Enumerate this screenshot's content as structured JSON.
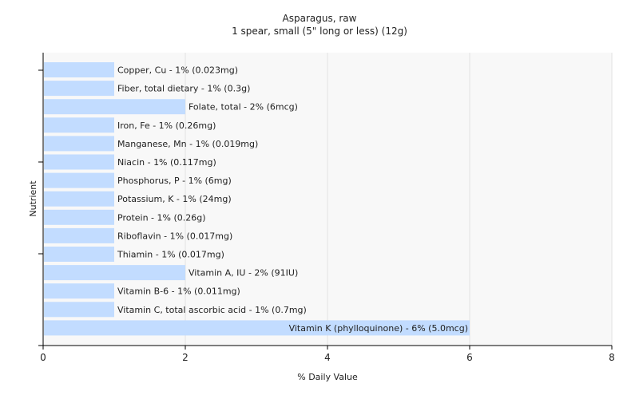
{
  "chart_data": {
    "type": "bar",
    "orientation": "horizontal",
    "title": "Asparagus, raw",
    "subtitle": "1 spear, small (5\" long or less) (12g)",
    "xlabel": "% Daily Value",
    "ylabel": "Nutrient",
    "xlim": [
      0,
      8
    ],
    "xticks": [
      0,
      2,
      4,
      6,
      8
    ],
    "grid": true,
    "legend": "none",
    "bar_color": "#c2dcff",
    "plot_background": "#f8f8f8",
    "categories": [
      "Copper, Cu",
      "Fiber, total dietary",
      "Folate, total",
      "Iron, Fe",
      "Manganese, Mn",
      "Niacin",
      "Phosphorus, P",
      "Potassium, K",
      "Protein",
      "Riboflavin",
      "Thiamin",
      "Vitamin A, IU",
      "Vitamin B-6",
      "Vitamin C, total ascorbic acid",
      "Vitamin K (phylloquinone)"
    ],
    "values": [
      1,
      1,
      2,
      1,
      1,
      1,
      1,
      1,
      1,
      1,
      1,
      2,
      1,
      1,
      6
    ],
    "labels": [
      "Copper, Cu - 1% (0.023mg)",
      "Fiber, total dietary - 1% (0.3g)",
      "Folate, total - 2% (6mcg)",
      "Iron, Fe - 1% (0.26mg)",
      "Manganese, Mn - 1% (0.019mg)",
      "Niacin - 1% (0.117mg)",
      "Phosphorus, P - 1% (6mg)",
      "Potassium, K - 1% (24mg)",
      "Protein - 1% (0.26g)",
      "Riboflavin - 1% (0.017mg)",
      "Thiamin - 1% (0.017mg)",
      "Vitamin A, IU - 2% (91IU)",
      "Vitamin B-6 - 1% (0.011mg)",
      "Vitamin C, total ascorbic acid - 1% (0.7mg)",
      "Vitamin K (phylloquinone) - 6% (5.0mcg)"
    ]
  }
}
